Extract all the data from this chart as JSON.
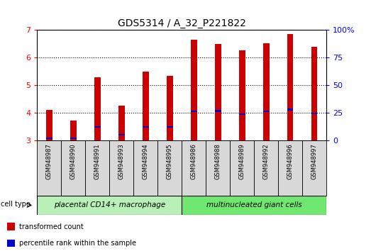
{
  "title": "GDS5314 / A_32_P221822",
  "samples": [
    "GSM948987",
    "GSM948990",
    "GSM948991",
    "GSM948993",
    "GSM948994",
    "GSM948995",
    "GSM948986",
    "GSM948988",
    "GSM948989",
    "GSM948992",
    "GSM948996",
    "GSM948997"
  ],
  "transformed_count": [
    4.12,
    3.72,
    5.28,
    4.27,
    5.5,
    5.35,
    6.65,
    6.5,
    6.27,
    6.52,
    6.85,
    6.4
  ],
  "percentile_rank": [
    3.08,
    3.08,
    3.49,
    3.22,
    3.49,
    3.49,
    4.06,
    4.07,
    3.96,
    4.06,
    4.12,
    3.98
  ],
  "groups": [
    {
      "label": "placental CD14+ macrophage",
      "start": 0,
      "end": 5,
      "color": "#b8f0b8"
    },
    {
      "label": "multinucleated giant cells",
      "start": 6,
      "end": 11,
      "color": "#70e870"
    }
  ],
  "ylim": [
    3.0,
    7.0
  ],
  "yticks": [
    3,
    4,
    5,
    6,
    7
  ],
  "right_yticks_pct": [
    0,
    25,
    50,
    75,
    100
  ],
  "bar_color": "#cc0000",
  "percentile_color": "#0000cc",
  "bar_width": 0.25,
  "grid_color": "#000000",
  "title_fontsize": 10,
  "legend_items": [
    {
      "label": "transformed count",
      "color": "#cc0000"
    },
    {
      "label": "percentile rank within the sample",
      "color": "#0000cc"
    }
  ]
}
